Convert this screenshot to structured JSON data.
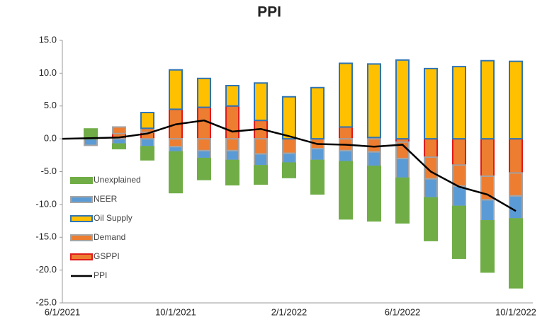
{
  "chart_data": {
    "type": "stacked-bar-line",
    "title": "PPI",
    "categories": [
      "6/1/2021",
      null,
      null,
      null,
      "10/1/2021",
      null,
      null,
      null,
      "2/1/2022",
      null,
      null,
      null,
      "6/1/2022",
      null,
      null,
      null,
      "10/1/2022"
    ],
    "ylim": [
      -25,
      15
    ],
    "yticks": [
      {
        "value": -25,
        "label": "-25.0"
      },
      {
        "value": -20,
        "label": "-20.0"
      },
      {
        "value": -15,
        "label": "-15.0"
      },
      {
        "value": -10,
        "label": "-10.0"
      },
      {
        "value": -5,
        "label": "-5.0"
      },
      {
        "value": 0,
        "label": "0.0"
      },
      {
        "value": 5,
        "label": "5.0"
      },
      {
        "value": 10,
        "label": "10.0"
      },
      {
        "value": 15,
        "label": "15.0"
      }
    ],
    "series": [
      {
        "name": "GSPPI",
        "kind": "bar",
        "color": "#ed7d31",
        "edgecolor": "#e01b1b",
        "values": [
          null,
          0.0,
          0.8,
          1.0,
          4.5,
          4.8,
          5.0,
          2.8,
          0.0,
          0.0,
          1.8,
          0.2,
          -0.5,
          -2.8,
          -4.0,
          -5.7,
          -5.2
        ]
      },
      {
        "name": "Demand",
        "kind": "bar",
        "color": "#ed7d31",
        "edgecolor": "#a5a5a5",
        "values": [
          null,
          0.0,
          1.0,
          0.6,
          -1.2,
          -1.8,
          -1.8,
          -2.3,
          -2.2,
          -1.5,
          -1.8,
          -2.0,
          -2.5,
          -3.3,
          -3.2,
          -3.6,
          -3.5
        ]
      },
      {
        "name": "Oil Supply",
        "kind": "bar",
        "color": "#ffc000",
        "edgecolor": "#2e75b6",
        "values": [
          null,
          0.0,
          0.0,
          2.4,
          6.0,
          4.4,
          3.1,
          5.7,
          6.4,
          7.8,
          9.7,
          11.2,
          12.0,
          10.7,
          11.0,
          11.9,
          11.8
        ]
      },
      {
        "name": "NEER",
        "kind": "bar",
        "color": "#5b9bd5",
        "edgecolor": "#a5a5a5",
        "values": [
          null,
          -1.0,
          -0.8,
          -1.2,
          -0.8,
          -1.2,
          -1.5,
          -1.8,
          -1.5,
          -1.8,
          -1.7,
          -2.2,
          -3.0,
          -2.9,
          -3.1,
          -3.2,
          -3.5
        ]
      },
      {
        "name": "Unexplained",
        "kind": "bar",
        "color": "#70ad47",
        "edgecolor": "#70ad47",
        "values": [
          null,
          1.5,
          -0.7,
          -2.0,
          -6.2,
          -3.2,
          -3.7,
          -2.8,
          -2.2,
          -5.1,
          -8.7,
          -8.3,
          -6.8,
          -6.5,
          -7.9,
          -7.8,
          -10.5
        ]
      },
      {
        "name": "PPI",
        "kind": "line",
        "color": "#000000",
        "values": [
          0.0,
          0.1,
          0.2,
          0.8,
          2.2,
          2.8,
          1.1,
          1.5,
          0.4,
          -0.8,
          -0.9,
          -1.2,
          -0.9,
          -5.0,
          -7.3,
          -8.5,
          -11.0
        ]
      }
    ],
    "legend_order": [
      "Unexplained",
      "NEER",
      "Oil Supply",
      "Demand",
      "GSPPI",
      "PPI"
    ]
  }
}
